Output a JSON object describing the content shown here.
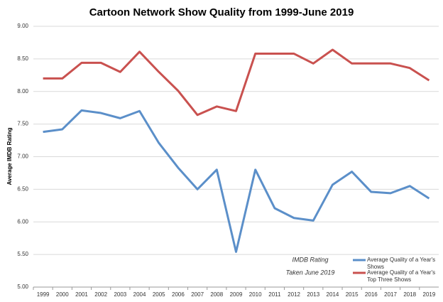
{
  "chart_data": {
    "type": "line",
    "title": "Cartoon Network Show Quality from 1999-June 2019",
    "y_label": "Average IMDB Rating",
    "annotation": [
      "IMDB Rating",
      "Taken June 2019"
    ],
    "categories": [
      "1999",
      "2000",
      "2001",
      "2002",
      "2003",
      "2004",
      "2005",
      "2006",
      "2007",
      "2008",
      "2009",
      "2010",
      "2011",
      "2012",
      "2013",
      "2014",
      "2015",
      "2016",
      "2017",
      "2018",
      "2019"
    ],
    "series": [
      {
        "name": "Average Quality of a Year's Shows",
        "color": "#5b8fc9",
        "values": [
          7.38,
          7.42,
          7.71,
          7.67,
          7.59,
          7.7,
          7.21,
          6.83,
          6.5,
          6.8,
          5.54,
          6.8,
          6.21,
          6.06,
          6.02,
          6.57,
          6.77,
          6.46,
          6.44,
          6.55,
          6.36
        ]
      },
      {
        "name": "Average Quality of a Year's Top Three Shows",
        "color": "#c9514f",
        "values": [
          8.2,
          8.2,
          8.44,
          8.44,
          8.3,
          8.61,
          8.3,
          8.01,
          7.64,
          7.77,
          7.7,
          8.58,
          8.58,
          8.58,
          8.43,
          8.64,
          8.43,
          8.43,
          8.43,
          8.36,
          8.17
        ]
      }
    ],
    "ylim": [
      5,
      9
    ],
    "yticks": [
      {
        "value": 5,
        "label": "5.00"
      },
      {
        "value": 5.5,
        "label": "5.50"
      },
      {
        "value": 6,
        "label": "6.00"
      },
      {
        "value": 6.5,
        "label": "6.50"
      },
      {
        "value": 7,
        "label": "7.00"
      },
      {
        "value": 7.5,
        "label": "7.50"
      },
      {
        "value": 8,
        "label": "8.00"
      },
      {
        "value": 8.5,
        "label": "8.50"
      },
      {
        "value": 9,
        "label": "9.00"
      }
    ],
    "grid": true,
    "legend": "bottom-right"
  }
}
